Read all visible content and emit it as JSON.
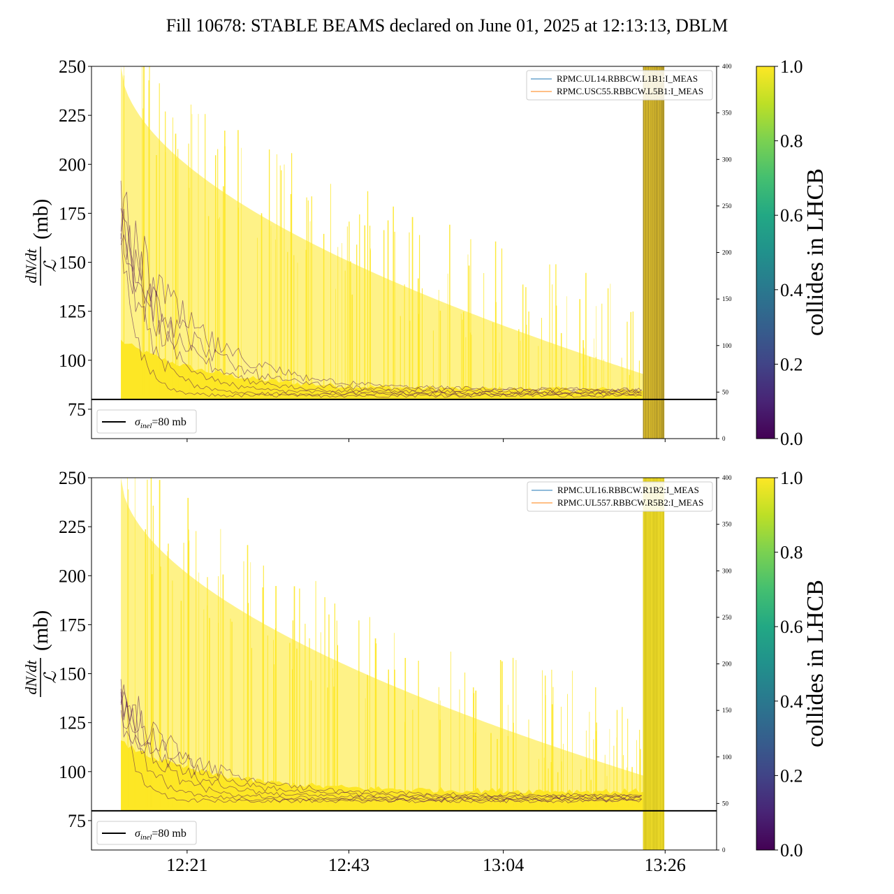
{
  "title": "Fill 10678: STABLE BEAMS declared on June 01, 2025 at 12:13:13, DBLM",
  "colors": {
    "collides_high": "#fde725",
    "collides_low": "#440154",
    "reference_line": "#000000",
    "legend_series_1": "#1f77b4",
    "legend_series_2": "#ff7f0e"
  },
  "chart_data": [
    {
      "type": "line",
      "panel": "top",
      "ylabel_num": "dN/dt",
      "ylabel_den": "ℒ",
      "ylabel_unit": "(mb)",
      "ylim": [
        60,
        250
      ],
      "yticks": [
        75,
        100,
        125,
        150,
        175,
        200,
        225,
        250
      ],
      "y2lim": [
        0,
        400
      ],
      "y2ticks": [
        0,
        50,
        100,
        150,
        200,
        250,
        300,
        350,
        400
      ],
      "xticks": [
        "12:21",
        "12:43",
        "13:04",
        "13:26"
      ],
      "xrange": [
        "12:08",
        "13:33"
      ],
      "data_start": "12:12",
      "beam_dump": "13:23",
      "reference_line": {
        "value": 80,
        "label": "σinel=80 mb",
        "label_sigma": "σ",
        "label_sub": "inel",
        "label_rest": "=80 mb"
      },
      "series": [
        {
          "name": "RPMC.UL14.RBBCW.L1B1:I_MEAS"
        },
        {
          "name": "RPMC.USC55.RBBCW.L5B1:I_MEAS"
        }
      ],
      "envelope": {
        "colliding_upper_start": 250,
        "colliding_upper_end": 93,
        "colliding_band_level": 85,
        "noncolliding_early_peak": 193,
        "noncolliding_settled": 82
      }
    },
    {
      "type": "line",
      "panel": "bottom",
      "ylabel_num": "dN/dt",
      "ylabel_den": "ℒ",
      "ylabel_unit": "(mb)",
      "ylim": [
        60,
        250
      ],
      "yticks": [
        75,
        100,
        125,
        150,
        175,
        200,
        225,
        250
      ],
      "y2lim": [
        0,
        400
      ],
      "y2ticks": [
        0,
        50,
        100,
        150,
        200,
        250,
        300,
        350,
        400
      ],
      "xticks": [
        "12:21",
        "12:43",
        "13:04",
        "13:26"
      ],
      "xrange": [
        "12:08",
        "13:33"
      ],
      "data_start": "12:12",
      "beam_dump": "13:23",
      "reference_line": {
        "value": 80,
        "label": "σinel=80 mb",
        "label_sigma": "σ",
        "label_sub": "inel",
        "label_rest": "=80 mb"
      },
      "series": [
        {
          "name": "RPMC.UL16.RBBCW.R1B2:I_MEAS"
        },
        {
          "name": "RPMC.UL557.RBBCW.R5B2:I_MEAS"
        }
      ],
      "envelope": {
        "colliding_upper_start": 250,
        "colliding_upper_end": 98,
        "colliding_band_level": 90,
        "noncolliding_early_peak": 150,
        "noncolliding_settled": 85
      }
    }
  ],
  "colorbar": {
    "label": "collides in LHCB",
    "ticks": [
      "0.0",
      "0.2",
      "0.4",
      "0.6",
      "0.8",
      "1.0"
    ],
    "range": [
      0,
      1
    ]
  }
}
